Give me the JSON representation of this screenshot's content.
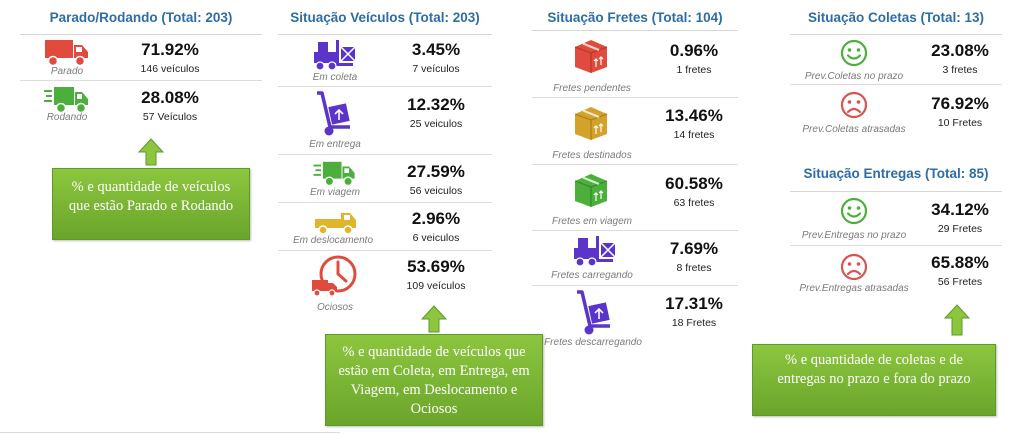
{
  "parado_rodando": {
    "title": "Parado/Rodando (Total: 203)",
    "rows": [
      {
        "label": "Parado",
        "percent": "71.92%",
        "count": "146 veículos",
        "icon": "truck-icon",
        "color": "#e04b3d"
      },
      {
        "label": "Rodando",
        "percent": "28.08%",
        "count": "57 Veículos",
        "icon": "moving-truck-icon",
        "color": "#4caf3c"
      }
    ],
    "note": "% e quantidade de veículos que estão Parado e Rodando"
  },
  "situacao_veiculos": {
    "title": "Situação Veículos (Total: 203)",
    "rows": [
      {
        "label": "Em coleta",
        "percent": "3.45%",
        "count": "7 veículos",
        "icon": "forklift-icon",
        "color": "#5b35c9"
      },
      {
        "label": "Em entrega",
        "percent": "12.32%",
        "count": "25 veiculos",
        "icon": "hand-truck-icon",
        "color": "#5b35c9"
      },
      {
        "label": "Em viagem",
        "percent": "27.59%",
        "count": "56 veiculos",
        "icon": "moving-truck-icon",
        "color": "#4caf3c"
      },
      {
        "label": "Em deslocamento",
        "percent": "2.96%",
        "count": "6 veiculos",
        "icon": "pickup-truck-icon",
        "color": "#e0b52c"
      },
      {
        "label": "Ociosos",
        "percent": "53.69%",
        "count": "109 veículos",
        "icon": "clock-truck-icon",
        "color": "#e04b3d"
      }
    ],
    "note": "% e quantidade de veículos que estão em Coleta, em Entrega, em Viagem, em Deslocamento e Ociosos"
  },
  "situacao_fretes": {
    "title": "Situação Fretes (Total: 104)",
    "rows": [
      {
        "label": "Fretes pendentes",
        "percent": "0.96%",
        "count": "1 fretes",
        "icon": "box-icon",
        "color": "#e04b3d"
      },
      {
        "label": "Fretes destinados",
        "percent": "13.46%",
        "count": "14 fretes",
        "icon": "box-icon",
        "color": "#d4a22b"
      },
      {
        "label": "Fretes em viagem",
        "percent": "60.58%",
        "count": "63 fretes",
        "icon": "box-icon",
        "color": "#4caf3c"
      },
      {
        "label": "Fretes carregando",
        "percent": "7.69%",
        "count": "8 fretes",
        "icon": "forklift-icon",
        "color": "#5b35c9"
      },
      {
        "label": "Fretes descarregando",
        "percent": "17.31%",
        "count": "18 Fretes",
        "icon": "hand-truck-icon",
        "color": "#5b35c9"
      }
    ]
  },
  "situacao_coletas": {
    "title": "Situação Coletas (Total: 13)",
    "rows": [
      {
        "label": "Prev.Coletas no prazo",
        "percent": "23.08%",
        "count": "3 fretes",
        "icon": "smile-icon",
        "color": "#4caf3c"
      },
      {
        "label": "Prev.Coletas atrasadas",
        "percent": "76.92%",
        "count": "10 Fretes",
        "icon": "frown-icon",
        "color": "#d9534f"
      }
    ]
  },
  "situacao_entregas": {
    "title": "Situação Entregas (Total: 85)",
    "rows": [
      {
        "label": "Prev.Entregas no prazo",
        "percent": "34.12%",
        "count": "29 Fretes",
        "icon": "smile-icon",
        "color": "#4caf3c"
      },
      {
        "label": "Prev.Entregas atrasadas",
        "percent": "65.88%",
        "count": "56 Fretes",
        "icon": "frown-icon",
        "color": "#d9534f"
      }
    ],
    "note": "% e quantidade de coletas e de entregas no prazo e fora do prazo"
  }
}
